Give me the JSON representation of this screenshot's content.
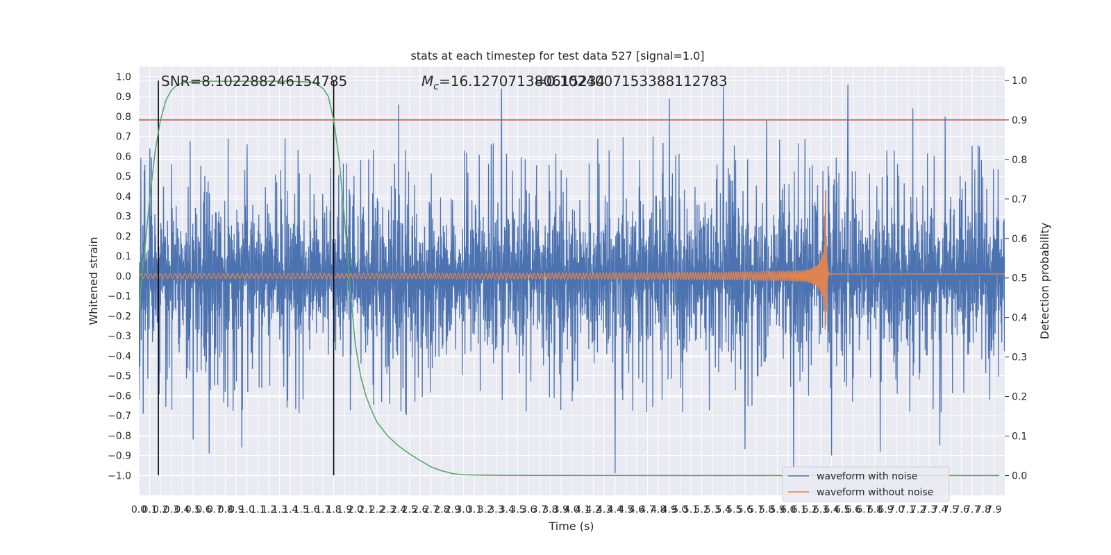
{
  "chart_data": {
    "type": "line",
    "title": "stats at each timestep for test data 527 [signal=1.0]",
    "xlabel": "Time (s)",
    "ylabel": "Whitened strain",
    "ylabel_right": "Detection probability",
    "xlim": [
      0.0,
      8.0
    ],
    "ylim": [
      -1.1,
      1.05
    ],
    "ylim_right": [
      -0.05,
      1.035
    ],
    "x_ticks": [
      0.0,
      0.1,
      0.2,
      0.3,
      0.4,
      0.5,
      0.6,
      0.7,
      0.8,
      0.9,
      1.0,
      1.1,
      1.2,
      1.3,
      1.4,
      1.5,
      1.6,
      1.7,
      1.8,
      1.9,
      2.0,
      2.1,
      2.2,
      2.3,
      2.4,
      2.5,
      2.6,
      2.7,
      2.8,
      2.9,
      3.0,
      3.1,
      3.2,
      3.3,
      3.4,
      3.5,
      3.6,
      3.7,
      3.8,
      3.9,
      4.0,
      4.1,
      4.2,
      4.3,
      4.4,
      4.5,
      4.6,
      4.7,
      4.8,
      4.9,
      5.0,
      5.1,
      5.2,
      5.3,
      5.4,
      5.5,
      5.6,
      5.7,
      5.8,
      5.9,
      6.0,
      6.1,
      6.2,
      6.3,
      6.4,
      6.5,
      6.6,
      6.7,
      6.8,
      6.9,
      7.0,
      7.1,
      7.2,
      7.3,
      7.4,
      7.5,
      7.6,
      7.7,
      7.8,
      7.9
    ],
    "y_ticks": [
      -1.0,
      -0.9,
      -0.8,
      -0.7,
      -0.6,
      -0.5,
      -0.4,
      -0.3,
      -0.2,
      -0.1,
      0.0,
      0.1,
      0.2,
      0.3,
      0.4,
      0.5,
      0.6,
      0.7,
      0.8,
      0.9,
      1.0
    ],
    "y_ticks_right": [
      0.0,
      0.1,
      0.2,
      0.3,
      0.4,
      0.5,
      0.6,
      0.7,
      0.8,
      0.9,
      1.0
    ],
    "grid": true,
    "legend_position": "lower-right",
    "annotations": {
      "snr": "SNR=8.102288246154785",
      "mc": "M",
      "mc_sub": "c",
      "mc_value": "=16.127071380615234",
      "overlap": "=0.1024007153388112783"
    },
    "threshold": {
      "value": 0.9,
      "axis": "right",
      "color": "#c44e52"
    },
    "vertical_markers": [
      0.18,
      1.8
    ],
    "series": [
      {
        "name": "waveform with noise",
        "color": "#4c72b0",
        "kind": "dense-noise",
        "x_range": [
          0.0,
          8.0
        ],
        "peaks": [
          {
            "x": 0.05,
            "y": 0.53
          },
          {
            "x": 0.1,
            "y": 0.64
          },
          {
            "x": 0.3,
            "y": 0.56
          },
          {
            "x": 0.5,
            "y": 0.82
          },
          {
            "x": 1.0,
            "y": 0.66
          },
          {
            "x": 1.35,
            "y": 0.69
          },
          {
            "x": 2.4,
            "y": 0.86
          },
          {
            "x": 3.35,
            "y": 0.94
          },
          {
            "x": 4.4,
            "y": 0.81
          },
          {
            "x": 4.9,
            "y": 0.89
          },
          {
            "x": 5.4,
            "y": 0.95
          },
          {
            "x": 5.8,
            "y": 0.78
          },
          {
            "x": 6.55,
            "y": 0.96
          },
          {
            "x": 7.15,
            "y": 0.84
          },
          {
            "x": 7.45,
            "y": 0.8
          }
        ],
        "troughs": [
          {
            "x": 0.0,
            "y": -0.62
          },
          {
            "x": 0.5,
            "y": -0.82
          },
          {
            "x": 0.65,
            "y": -0.89
          },
          {
            "x": 0.95,
            "y": -0.86
          },
          {
            "x": 4.4,
            "y": -0.99
          },
          {
            "x": 5.6,
            "y": -0.87
          },
          {
            "x": 6.05,
            "y": -0.96
          },
          {
            "x": 6.4,
            "y": -0.9
          },
          {
            "x": 6.85,
            "y": -0.88
          },
          {
            "x": 7.4,
            "y": -0.85
          }
        ]
      },
      {
        "name": "waveform without noise",
        "color": "#dd8452",
        "kind": "chirp",
        "x_range": [
          0.0,
          8.0
        ],
        "merger_time": 6.35,
        "amplitude_start": 0.012,
        "amplitude_peak_pos": 0.43,
        "amplitude_peak_neg": -0.33
      },
      {
        "name": "detection probability",
        "color": "#55a868",
        "axis": "right",
        "x": [
          0.0,
          0.05,
          0.1,
          0.15,
          0.2,
          0.25,
          0.3,
          0.35,
          0.4,
          0.5,
          0.6,
          0.8,
          1.0,
          1.2,
          1.4,
          1.5,
          1.6,
          1.65,
          1.7,
          1.75,
          1.8,
          1.85,
          1.9,
          1.95,
          2.0,
          2.05,
          2.1,
          2.15,
          2.2,
          2.3,
          2.4,
          2.5,
          2.6,
          2.7,
          2.8,
          2.9,
          3.0,
          3.2,
          3.5,
          4.0,
          5.0,
          6.0,
          7.0,
          7.95
        ],
        "y": [
          0.42,
          0.56,
          0.7,
          0.82,
          0.9,
          0.95,
          0.975,
          0.988,
          0.993,
          0.997,
          0.998,
          0.998,
          0.998,
          0.998,
          0.998,
          0.997,
          0.995,
          0.99,
          0.98,
          0.96,
          0.9,
          0.8,
          0.65,
          0.48,
          0.33,
          0.25,
          0.2,
          0.165,
          0.135,
          0.1,
          0.075,
          0.055,
          0.038,
          0.022,
          0.012,
          0.005,
          0.002,
          0.001,
          0.0005,
          0.0003,
          0.0002,
          0.0002,
          0.0002,
          0.0002
        ]
      }
    ]
  }
}
